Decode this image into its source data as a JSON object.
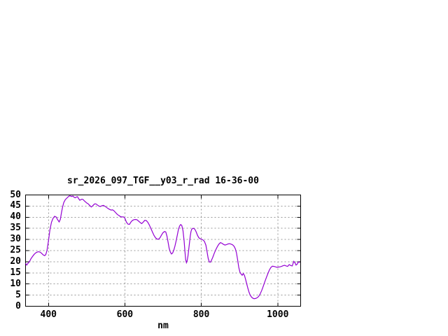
{
  "window": {
    "background": "#ffffff"
  },
  "chart_data": {
    "type": "line",
    "title": "sr_2026_097_TGF__y03_r_rad 16-36-00",
    "xlabel": "nm",
    "ylabel": "",
    "xlim": [
      340,
      1060
    ],
    "ylim": [
      0,
      50
    ],
    "x_ticks": [
      400,
      600,
      800,
      1000
    ],
    "y_ticks": [
      0,
      5,
      10,
      15,
      20,
      25,
      30,
      35,
      40,
      45,
      50
    ],
    "grid": "dashed",
    "legend": "none",
    "line_color": "#9400d3",
    "grid_color": "#999999",
    "frame_color": "#000000",
    "series": [
      {
        "points": [
          [
            340,
            19.3
          ],
          [
            343,
            18.5
          ],
          [
            346,
            19.2
          ],
          [
            350,
            20.0
          ],
          [
            354,
            21.3
          ],
          [
            358,
            22.3
          ],
          [
            362,
            23.2
          ],
          [
            366,
            23.9
          ],
          [
            370,
            24.3
          ],
          [
            374,
            24.5
          ],
          [
            378,
            24.3
          ],
          [
            382,
            23.8
          ],
          [
            386,
            23.1
          ],
          [
            390,
            22.7
          ],
          [
            393,
            23.2
          ],
          [
            396,
            25.0
          ],
          [
            400,
            29.5
          ],
          [
            404,
            34.5
          ],
          [
            408,
            37.8
          ],
          [
            412,
            39.5
          ],
          [
            416,
            40.4
          ],
          [
            420,
            40.1
          ],
          [
            424,
            38.9
          ],
          [
            428,
            37.9
          ],
          [
            431,
            39.0
          ],
          [
            434,
            42.0
          ],
          [
            437,
            44.6
          ],
          [
            440,
            46.6
          ],
          [
            444,
            47.9
          ],
          [
            448,
            48.6
          ],
          [
            452,
            49.2
          ],
          [
            455,
            49.6
          ],
          [
            458,
            49.5
          ],
          [
            461,
            49.3
          ],
          [
            464,
            49.5
          ],
          [
            467,
            49.0
          ],
          [
            470,
            48.7
          ],
          [
            473,
            49.1
          ],
          [
            476,
            49.2
          ],
          [
            479,
            48.3
          ],
          [
            482,
            47.6
          ],
          [
            485,
            47.9
          ],
          [
            488,
            48.1
          ],
          [
            491,
            47.9
          ],
          [
            494,
            47.3
          ],
          [
            497,
            46.9
          ],
          [
            500,
            46.4
          ],
          [
            504,
            46.0
          ],
          [
            508,
            45.3
          ],
          [
            512,
            44.6
          ],
          [
            516,
            45.2
          ],
          [
            520,
            45.9
          ],
          [
            524,
            46.0
          ],
          [
            528,
            45.5
          ],
          [
            532,
            45.0
          ],
          [
            536,
            44.8
          ],
          [
            540,
            45.2
          ],
          [
            544,
            45.3
          ],
          [
            548,
            44.9
          ],
          [
            552,
            44.4
          ],
          [
            556,
            43.9
          ],
          [
            560,
            43.5
          ],
          [
            564,
            43.2
          ],
          [
            568,
            43.3
          ],
          [
            572,
            42.8
          ],
          [
            576,
            42.0
          ],
          [
            580,
            41.3
          ],
          [
            584,
            40.8
          ],
          [
            588,
            40.3
          ],
          [
            592,
            40.1
          ],
          [
            596,
            40.2
          ],
          [
            600,
            39.6
          ],
          [
            604,
            37.8
          ],
          [
            608,
            36.9
          ],
          [
            612,
            36.8
          ],
          [
            616,
            37.9
          ],
          [
            620,
            38.6
          ],
          [
            624,
            38.9
          ],
          [
            628,
            39.0
          ],
          [
            632,
            38.8
          ],
          [
            636,
            38.2
          ],
          [
            640,
            37.6
          ],
          [
            644,
            37.1
          ],
          [
            648,
            37.8
          ],
          [
            652,
            38.6
          ],
          [
            656,
            38.5
          ],
          [
            660,
            37.7
          ],
          [
            664,
            36.5
          ],
          [
            668,
            35.0
          ],
          [
            672,
            33.4
          ],
          [
            676,
            31.9
          ],
          [
            680,
            30.8
          ],
          [
            684,
            30.2
          ],
          [
            688,
            30.1
          ],
          [
            692,
            30.8
          ],
          [
            696,
            32.0
          ],
          [
            700,
            33.1
          ],
          [
            704,
            33.6
          ],
          [
            707,
            33.4
          ],
          [
            710,
            31.5
          ],
          [
            713,
            28.8
          ],
          [
            716,
            26.0
          ],
          [
            719,
            24.3
          ],
          [
            722,
            23.5
          ],
          [
            725,
            23.9
          ],
          [
            728,
            25.2
          ],
          [
            731,
            27.0
          ],
          [
            734,
            29.3
          ],
          [
            737,
            31.8
          ],
          [
            740,
            34.3
          ],
          [
            743,
            36.0
          ],
          [
            746,
            36.7
          ],
          [
            749,
            36.3
          ],
          [
            752,
            34.0
          ],
          [
            755,
            29.5
          ],
          [
            757,
            25.0
          ],
          [
            759,
            21.0
          ],
          [
            761,
            19.6
          ],
          [
            763,
            20.5
          ],
          [
            765,
            22.5
          ],
          [
            767,
            25.5
          ],
          [
            769,
            28.5
          ],
          [
            771,
            31.5
          ],
          [
            773,
            33.5
          ],
          [
            775,
            34.6
          ],
          [
            778,
            35.0
          ],
          [
            781,
            34.9
          ],
          [
            784,
            34.3
          ],
          [
            787,
            33.2
          ],
          [
            790,
            31.9
          ],
          [
            793,
            30.9
          ],
          [
            796,
            30.4
          ],
          [
            800,
            30.2
          ],
          [
            804,
            29.8
          ],
          [
            808,
            29.2
          ],
          [
            812,
            27.5
          ],
          [
            815,
            24.5
          ],
          [
            818,
            21.5
          ],
          [
            821,
            19.9
          ],
          [
            824,
            19.8
          ],
          [
            827,
            20.8
          ],
          [
            830,
            22.0
          ],
          [
            834,
            23.8
          ],
          [
            838,
            25.4
          ],
          [
            842,
            26.8
          ],
          [
            846,
            27.9
          ],
          [
            850,
            28.6
          ],
          [
            854,
            28.3
          ],
          [
            858,
            27.8
          ],
          [
            862,
            27.5
          ],
          [
            866,
            27.7
          ],
          [
            870,
            28.0
          ],
          [
            874,
            28.1
          ],
          [
            878,
            27.9
          ],
          [
            882,
            27.6
          ],
          [
            886,
            26.9
          ],
          [
            889,
            25.8
          ],
          [
            892,
            24.0
          ],
          [
            895,
            21.0
          ],
          [
            898,
            17.5
          ],
          [
            901,
            15.4
          ],
          [
            904,
            14.5
          ],
          [
            907,
            13.9
          ],
          [
            910,
            14.7
          ],
          [
            913,
            13.8
          ],
          [
            916,
            12.0
          ],
          [
            919,
            10.0
          ],
          [
            922,
            8.0
          ],
          [
            925,
            6.3
          ],
          [
            928,
            5.0
          ],
          [
            931,
            4.2
          ],
          [
            934,
            3.7
          ],
          [
            938,
            3.4
          ],
          [
            942,
            3.5
          ],
          [
            946,
            3.8
          ],
          [
            950,
            4.4
          ],
          [
            954,
            5.5
          ],
          [
            958,
            7.0
          ],
          [
            962,
            8.9
          ],
          [
            966,
            10.9
          ],
          [
            970,
            12.8
          ],
          [
            974,
            14.6
          ],
          [
            978,
            16.2
          ],
          [
            982,
            17.4
          ],
          [
            986,
            18.0
          ],
          [
            990,
            17.9
          ],
          [
            994,
            17.7
          ],
          [
            998,
            17.5
          ],
          [
            1002,
            17.6
          ],
          [
            1006,
            17.7
          ],
          [
            1010,
            17.9
          ],
          [
            1014,
            18.2
          ],
          [
            1018,
            18.4
          ],
          [
            1022,
            18.1
          ],
          [
            1026,
            17.9
          ],
          [
            1030,
            18.7
          ],
          [
            1034,
            18.3
          ],
          [
            1038,
            18.1
          ],
          [
            1042,
            20.2
          ],
          [
            1045,
            19.6
          ],
          [
            1048,
            18.5
          ],
          [
            1051,
            18.9
          ],
          [
            1054,
            19.9
          ],
          [
            1058,
            19.7
          ]
        ]
      }
    ]
  }
}
